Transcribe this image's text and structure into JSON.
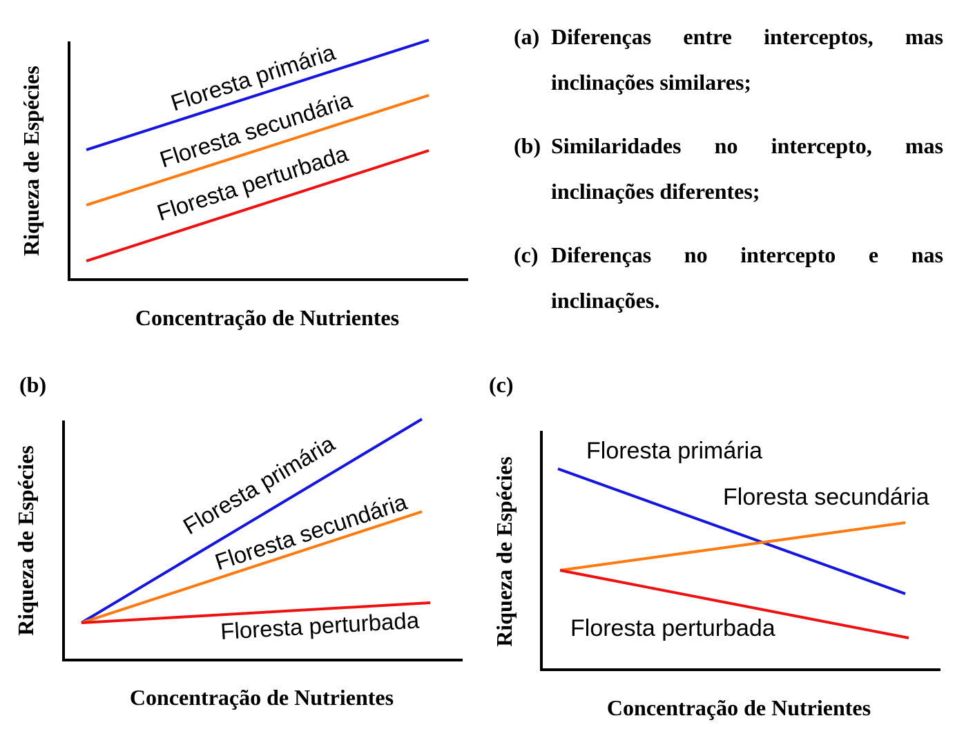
{
  "common": {
    "ylabel": "Riqueza de Espécies",
    "xlabel": "Concentração de Nutrientes"
  },
  "colors": {
    "primary_forest": "#1515e0",
    "secondary_forest": "#ff7a10",
    "disturbed_forest": "#ee1111",
    "axes": "#000000"
  },
  "panels": [
    {
      "id": "a",
      "label": "",
      "ylabel": "Riqueza de Espécies",
      "xlabel": "Concentração de Nutrientes",
      "lines": [
        {
          "name": "Floresta primária",
          "start_level": 0.56,
          "end_level": 1.0
        },
        {
          "name": "Floresta secundária",
          "start_level": 0.32,
          "end_level": 0.78
        },
        {
          "name": "Floresta perturbada",
          "start_level": 0.09,
          "end_level": 0.55
        }
      ]
    },
    {
      "id": "b",
      "label": "(b)",
      "ylabel": "Riqueza de Espécies",
      "xlabel": "Concentração de Nutrientes",
      "lines": [
        {
          "name": "Floresta primária",
          "start_level": 0.17,
          "end_level": 1.0
        },
        {
          "name": "Floresta secundária",
          "start_level": 0.17,
          "end_level": 0.62
        },
        {
          "name": "Floresta perturbada",
          "start_level": 0.17,
          "end_level": 0.24
        }
      ]
    },
    {
      "id": "c",
      "label": "(c)",
      "ylabel": "Riqueza de Espécies",
      "xlabel": "Concentração de Nutrientes",
      "lines": [
        {
          "name": "Floresta primária",
          "start_level": 0.85,
          "end_level": 0.32
        },
        {
          "name": "Floresta secundária",
          "start_level": 0.42,
          "end_level": 0.62
        },
        {
          "name": "Floresta perturbada",
          "start_level": 0.42,
          "end_level": 0.13
        }
      ]
    }
  ],
  "legend": [
    {
      "tag": "(a)",
      "text": "Diferenças entre interceptos, mas inclinações similares;"
    },
    {
      "tag": "(b)",
      "text": "Similaridades no intercepto, mas inclinações diferentes;"
    },
    {
      "tag": "(c)",
      "text": "Diferenças no intercepto e nas inclinações."
    }
  ]
}
